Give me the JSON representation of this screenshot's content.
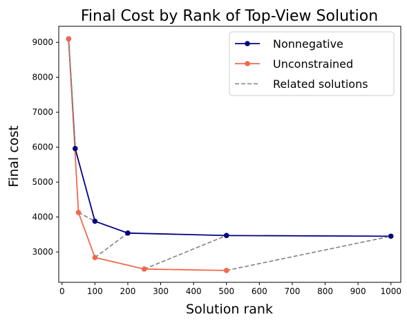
{
  "chart_data": {
    "type": "line",
    "title": "Final Cost by Rank of Top-View Solution",
    "xlabel": "Solution rank",
    "ylabel": "Final cost",
    "xlim": [
      -10,
      1030
    ],
    "ylim": [
      2130,
      9460
    ],
    "xticks": [
      0,
      100,
      200,
      300,
      400,
      500,
      600,
      700,
      800,
      900,
      1000
    ],
    "yticks": [
      3000,
      4000,
      5000,
      6000,
      7000,
      8000,
      9000
    ],
    "grid": false,
    "legend_position": "top-right",
    "series": [
      {
        "name": "Nonnegative",
        "color": "#000080",
        "style": "solid-marker",
        "x": [
          20,
          40,
          100,
          200,
          500,
          1000
        ],
        "y": [
          9100,
          5960,
          3880,
          3540,
          3470,
          3450
        ]
      },
      {
        "name": "Unconstrained",
        "color": "#f4664a",
        "style": "solid-marker",
        "x": [
          20,
          50,
          100,
          250,
          500
        ],
        "y": [
          9100,
          4130,
          2840,
          2510,
          2470
        ]
      },
      {
        "name": "Related solutions",
        "color": "#808080",
        "style": "dashed",
        "segments": [
          [
            [
              20,
              9100
            ],
            [
              40,
              5960
            ]
          ],
          [
            [
              50,
              4130
            ],
            [
              100,
              3880
            ]
          ],
          [
            [
              100,
              2840
            ],
            [
              200,
              3540
            ]
          ],
          [
            [
              250,
              2510
            ],
            [
              500,
              3470
            ]
          ],
          [
            [
              500,
              2470
            ],
            [
              1000,
              3450
            ]
          ]
        ]
      }
    ]
  }
}
